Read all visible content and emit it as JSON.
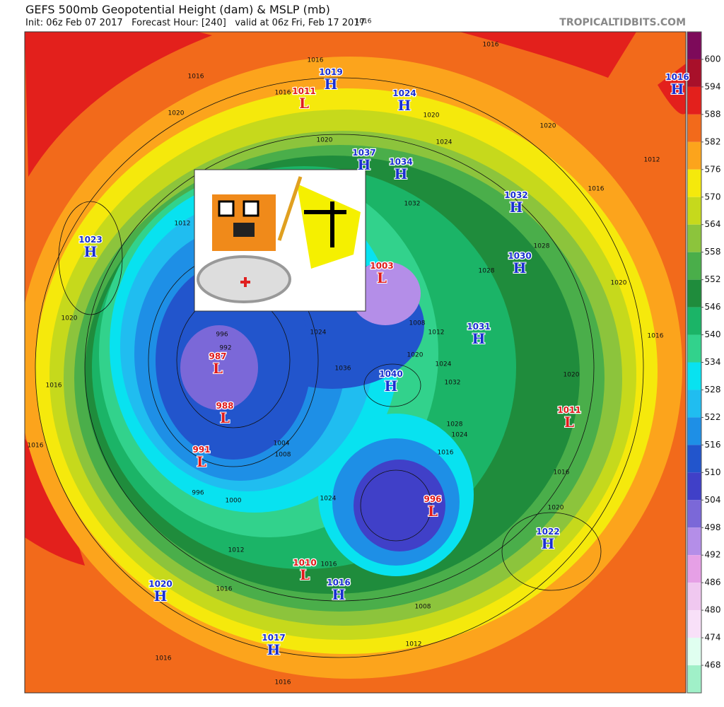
{
  "header": {
    "title": "GEFS 500mb Geopotential Height (dam) & MSLP (mb)",
    "subtitle": "Init: 06z Feb 07 2017   Forecast Hour: [240]   valid at 06z Fri, Feb 17 2017",
    "credit": "TROPICALTIDBITS.COM"
  },
  "colorbar": {
    "ticks": [
      600,
      594,
      588,
      582,
      576,
      570,
      564,
      558,
      552,
      546,
      540,
      534,
      528,
      522,
      516,
      510,
      504,
      498,
      492,
      486,
      480,
      474,
      468
    ],
    "colors": [
      "#7d0a5a",
      "#a8102a",
      "#e3201c",
      "#f26a1b",
      "#fca41c",
      "#f5e90c",
      "#c6d91c",
      "#8cc43c",
      "#4aae4a",
      "#1f8c3c",
      "#1bb467",
      "#32d28c",
      "#08e2f0",
      "#20bdf0",
      "#1e8fe6",
      "#2255cc",
      "#4040c8",
      "#7b68d8",
      "#b48ee8",
      "#e6a0e6",
      "#f0c8f0",
      "#f8e0f8",
      "#e0fff0",
      "#a0f0c8"
    ]
  },
  "pressure_centers": [
    {
      "letter": "H",
      "value": "1019"
    },
    {
      "letter": "L",
      "value": "1011"
    },
    {
      "letter": "H",
      "value": "1024"
    },
    {
      "letter": "H",
      "value": "1037"
    },
    {
      "letter": "H",
      "value": "1034"
    },
    {
      "letter": "H",
      "value": "1023"
    },
    {
      "letter": "H",
      "value": "1032"
    },
    {
      "letter": "H",
      "value": "1030"
    },
    {
      "letter": "L",
      "value": "1003"
    },
    {
      "letter": "H",
      "value": "1031"
    },
    {
      "letter": "L",
      "value": "987"
    },
    {
      "letter": "H",
      "value": "1040"
    },
    {
      "letter": "L",
      "value": "988"
    },
    {
      "letter": "L",
      "value": "1011"
    },
    {
      "letter": "L",
      "value": "991"
    },
    {
      "letter": "L",
      "value": "996"
    },
    {
      "letter": "H",
      "value": "1022"
    },
    {
      "letter": "L",
      "value": "1010"
    },
    {
      "letter": "H",
      "value": "1020"
    },
    {
      "letter": "H",
      "value": "1016"
    },
    {
      "letter": "H",
      "value": "1017"
    },
    {
      "letter": "H",
      "value": "1016"
    }
  ],
  "contour_labels": [
    "1016",
    "1016",
    "1016",
    "1016",
    "1016",
    "1020",
    "1020",
    "1020",
    "1024",
    "1032",
    "1020",
    "1012",
    "1016",
    "1020",
    "1016",
    "1020",
    "1024",
    "1028",
    "1016",
    "1016",
    "1020",
    "1016",
    "1020",
    "1016",
    "1012",
    "996",
    "992",
    "1004",
    "1008",
    "1000",
    "996",
    "1024",
    "1036",
    "1008",
    "1012",
    "1020",
    "1024",
    "1032",
    "1012",
    "1016",
    "1016",
    "1024",
    "1008",
    "1012",
    "1016",
    "1016",
    "1028",
    "1028"
  ]
}
